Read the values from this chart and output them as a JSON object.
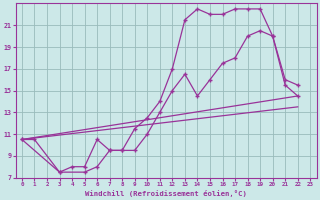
{
  "xlabel": "Windchill (Refroidissement éolien,°C)",
  "bg_color": "#cce8e8",
  "line_color": "#993399",
  "grid_color": "#99bbbb",
  "series1_x": [
    0,
    1,
    3,
    4,
    5,
    6,
    7,
    8,
    9,
    10,
    11,
    12,
    13,
    14,
    15,
    16,
    17,
    18,
    19,
    20,
    21,
    22
  ],
  "series1_y": [
    10.5,
    10.5,
    7.5,
    8.0,
    8.0,
    10.5,
    9.5,
    9.5,
    11.5,
    12.5,
    14.0,
    17.0,
    21.5,
    22.5,
    22.0,
    22.0,
    22.5,
    22.5,
    22.5,
    20.0,
    16.0,
    15.5
  ],
  "series2_x": [
    0,
    3,
    5,
    6,
    7,
    8,
    9,
    10,
    11,
    12,
    13,
    14,
    15,
    16,
    17,
    18,
    19,
    20,
    21,
    22
  ],
  "series2_y": [
    10.5,
    7.5,
    7.5,
    8.0,
    9.5,
    9.5,
    9.5,
    11.0,
    13.0,
    15.0,
    16.5,
    14.5,
    16.0,
    17.5,
    18.0,
    20.0,
    20.5,
    20.0,
    15.5,
    14.5
  ],
  "series3_x": [
    0,
    22
  ],
  "series3_y": [
    10.5,
    13.5
  ],
  "series4_x": [
    0,
    22
  ],
  "series4_y": [
    10.5,
    14.5
  ],
  "xmin": -0.5,
  "xmax": 23.5,
  "ymin": 7,
  "ymax": 23,
  "xticks": [
    0,
    1,
    2,
    3,
    4,
    5,
    6,
    7,
    8,
    9,
    10,
    11,
    12,
    13,
    14,
    15,
    16,
    17,
    18,
    19,
    20,
    21,
    22,
    23
  ],
  "yticks": [
    7,
    9,
    11,
    13,
    15,
    17,
    19,
    21
  ]
}
